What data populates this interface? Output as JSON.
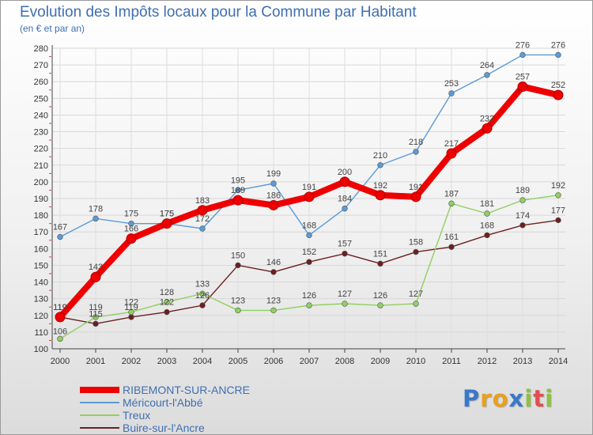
{
  "chart_data": {
    "type": "line",
    "title": "Evolution des Impôts locaux pour la Commune par Habitant",
    "subtitle": "(en € et par an)",
    "xlabel": "",
    "ylabel": "",
    "ylim": [
      100,
      280
    ],
    "ytick_step": 10,
    "grid": true,
    "legend_position": "bottom-left",
    "categories": [
      "2000",
      "2001",
      "2002",
      "2003",
      "2004",
      "2005",
      "2006",
      "2007",
      "2008",
      "2009",
      "2010",
      "2011",
      "2012",
      "2013",
      "2014"
    ],
    "series": [
      {
        "name": "RIBEMONT-SUR-ANCRE",
        "color": "#ee0000",
        "values": [
          119,
          143,
          166,
          175,
          183,
          189,
          186,
          191,
          200,
          192,
          191,
          217,
          232,
          257,
          252
        ],
        "labels": [
          "119",
          "143",
          "166",
          "175",
          "183",
          "189",
          "186",
          "191",
          "200",
          "192",
          "191",
          "217",
          "232",
          "257",
          "252"
        ]
      },
      {
        "name": "Méricourt-l'Abbé",
        "color": "#5b9bd5",
        "values": [
          167,
          178,
          175,
          175,
          172,
          195,
          199,
          168,
          184,
          210,
          218,
          253,
          264,
          276,
          276
        ],
        "labels": [
          "167",
          "178",
          "175",
          "175",
          "172",
          "195",
          "199",
          "168",
          "184",
          "210",
          "218",
          "253",
          "264",
          "276",
          "276"
        ]
      },
      {
        "name": "Treux",
        "color": "#90d060",
        "values": [
          106,
          119,
          122,
          128,
          133,
          123,
          123,
          126,
          127,
          126,
          127,
          187,
          181,
          189,
          192
        ],
        "labels": [
          "106",
          "119",
          "122",
          "128",
          "133",
          "123",
          "123",
          "126",
          "127",
          "126",
          "127",
          "187",
          "181",
          "189",
          "192"
        ]
      },
      {
        "name": "Buire-sur-l'Ancre",
        "color": "#6b2020",
        "values": [
          119,
          115,
          119,
          122,
          126,
          150,
          146,
          152,
          157,
          151,
          158,
          161,
          168,
          174,
          177
        ],
        "labels": [
          "119",
          "115",
          "119",
          "122",
          "126",
          "150",
          "146",
          "152",
          "157",
          "151",
          "158",
          "161",
          "168",
          "174",
          "177"
        ]
      }
    ]
  },
  "brand": {
    "letters": [
      "P",
      "r",
      "o",
      "x",
      "i",
      "t",
      "i"
    ],
    "colors": [
      "#3a78c8",
      "#e8a020",
      "#e8a020",
      "#3a78c8",
      "#90c040",
      "#e05050",
      "#90c040"
    ]
  }
}
